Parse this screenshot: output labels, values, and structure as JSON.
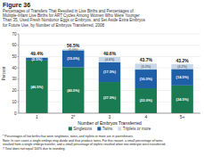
{
  "chart_data": {
    "type": "bar",
    "stacked": true,
    "title": "Figure 36",
    "subtitle": "Percentages of Transfers That Resulted in Live Births and Percentages of\nMultiple-Infant Live Births for ART Cycles Among Women Who Were Younger\nThan 35, Used Fresh Nondonor Eggs or Embryos, and Set Aside Extra Embryos\nfor Future Use, by Number of Embryos Transferred, 2008",
    "xlabel": "Number of Embryos Transferred",
    "ylabel": "Percent",
    "categories": [
      "1",
      "2*",
      "3",
      "4",
      "5+"
    ],
    "series": [
      {
        "name": "Singletons",
        "color": "#1a7a52",
        "values": [
          46.5,
          40.5,
          27.5,
          22.0,
          24.5
        ],
        "value_labels": [
          "(46.5%)",
          "(40.5%)",
          "(27.5%)",
          "(22.0%)",
          "(24.5%)"
        ]
      },
      {
        "name": "Twins",
        "color": "#1e5fa8",
        "values": [
          2.5,
          15.0,
          17.5,
          16.5,
          14.5
        ],
        "value_labels": [
          "(2.5%)",
          "(15.0%)",
          "(17.5%)",
          "(16.5%)",
          "(14.5%)"
        ]
      },
      {
        "name": "Triplets or more",
        "color": "#c8d8e8",
        "values": [
          0.4,
          1.0,
          4.6,
          5.2,
          4.2
        ],
        "value_labels": [
          null,
          "(1.0%)",
          "(4.6%)",
          "(5.2%)",
          "(4.2%)"
        ]
      }
    ],
    "totals": [
      49.4,
      56.5,
      49.6,
      43.7,
      43.2
    ],
    "totals_labels": [
      "49.4%",
      "56.5%",
      "49.6%",
      "43.7%",
      "43.2%"
    ],
    "ylim": [
      0,
      70
    ],
    "yticks": [
      0,
      10,
      20,
      30,
      40,
      50,
      60,
      70
    ],
    "grid": true,
    "legend": "bottom",
    "data_labels": true,
    "notes": [
      "* Percentages of live births that were singletons, twins, and triplets or more are in parentheses.",
      "Note: In rare cases a single embryo may divide and thus produce twins. For this reason, a small percentage of twins\nresulted from a single embryo transfer, and a small percentage of triplets resulted when two embryos were transferred.",
      "† Total does not equal 100% due to rounding."
    ]
  }
}
